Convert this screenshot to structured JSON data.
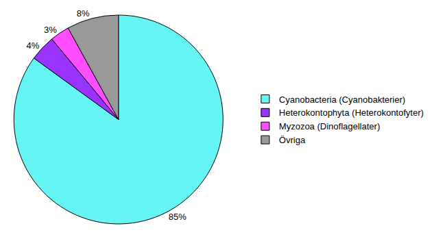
{
  "chart_data": {
    "type": "pie",
    "categories": [
      "Cyanobacteria (Cyanobakterier)",
      "Heterokontophyta (Heterokontofyter)",
      "Myzozoa (Dinoflagellater)",
      "Övriga"
    ],
    "values": [
      85,
      4,
      3,
      8
    ],
    "value_labels": [
      "85%",
      "4%",
      "3%",
      "8%"
    ],
    "colors": [
      "#66f5f5",
      "#9933ff",
      "#ff4dff",
      "#999999"
    ],
    "data_labels": true,
    "legend": "right"
  }
}
